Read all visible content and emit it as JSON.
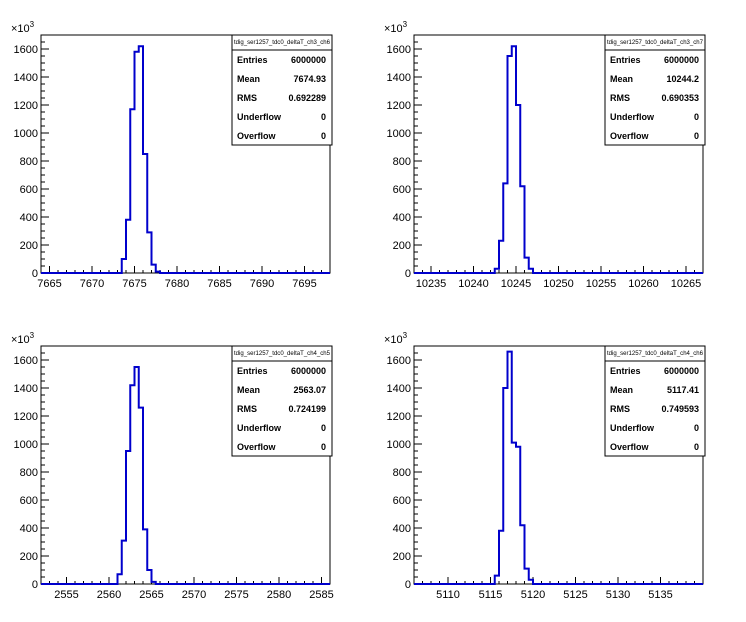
{
  "chart_data": [
    {
      "type": "histogram",
      "stats_title": "tdig_ser1257_tdc0_deltaT_ch3_ch6",
      "exponent_label": "×10³",
      "stats": [
        {
          "label": "Entries",
          "value": "6000000"
        },
        {
          "label": "Mean",
          "value": "7674.93"
        },
        {
          "label": "RMS",
          "value": "0.692289"
        },
        {
          "label": "Underflow",
          "value": "0"
        },
        {
          "label": "Overflow",
          "value": "0"
        }
      ],
      "xlim": [
        7664,
        7698
      ],
      "ylim": [
        0,
        1700
      ],
      "xticks": [
        7665,
        7670,
        7675,
        7680,
        7685,
        7690,
        7695
      ],
      "yticks": [
        0,
        200,
        400,
        600,
        800,
        1000,
        1200,
        1400,
        1600
      ],
      "bin_width": 0.5,
      "bins": [
        {
          "x": 7673.5,
          "y": 100
        },
        {
          "x": 7674.0,
          "y": 380
        },
        {
          "x": 7674.5,
          "y": 1170
        },
        {
          "x": 7675.0,
          "y": 1580
        },
        {
          "x": 7675.5,
          "y": 1620
        },
        {
          "x": 7676.0,
          "y": 850
        },
        {
          "x": 7676.5,
          "y": 290
        },
        {
          "x": 7677.0,
          "y": 60
        },
        {
          "x": 7677.5,
          "y": 10
        }
      ]
    },
    {
      "type": "histogram",
      "stats_title": "tdig_ser1257_tdc0_deltaT_ch3_ch7",
      "exponent_label": "×10³",
      "stats": [
        {
          "label": "Entries",
          "value": "6000000"
        },
        {
          "label": "Mean",
          "value": "10244.2"
        },
        {
          "label": "RMS",
          "value": "0.690353"
        },
        {
          "label": "Underflow",
          "value": "0"
        },
        {
          "label": "Overflow",
          "value": "0"
        }
      ],
      "xlim": [
        10233,
        10267
      ],
      "ylim": [
        0,
        1700
      ],
      "xticks": [
        10235,
        10240,
        10245,
        10250,
        10255,
        10260,
        10265
      ],
      "yticks": [
        0,
        200,
        400,
        600,
        800,
        1000,
        1200,
        1400,
        1600
      ],
      "bin_width": 0.5,
      "bins": [
        {
          "x": 10242.5,
          "y": 30
        },
        {
          "x": 10243.0,
          "y": 230
        },
        {
          "x": 10243.5,
          "y": 640
        },
        {
          "x": 10244.0,
          "y": 1550
        },
        {
          "x": 10244.5,
          "y": 1620
        },
        {
          "x": 10245.0,
          "y": 1200
        },
        {
          "x": 10245.5,
          "y": 620
        },
        {
          "x": 10246.0,
          "y": 110
        },
        {
          "x": 10246.5,
          "y": 30
        }
      ]
    },
    {
      "type": "histogram",
      "stats_title": "tdig_ser1257_tdc0_deltaT_ch4_ch5",
      "exponent_label": "×10³",
      "stats": [
        {
          "label": "Entries",
          "value": "6000000"
        },
        {
          "label": "Mean",
          "value": "2563.07"
        },
        {
          "label": "RMS",
          "value": "0.724199"
        },
        {
          "label": "Underflow",
          "value": "0"
        },
        {
          "label": "Overflow",
          "value": "0"
        }
      ],
      "xlim": [
        2552,
        2586
      ],
      "ylim": [
        0,
        1700
      ],
      "xticks": [
        2555,
        2560,
        2565,
        2570,
        2575,
        2580,
        2585
      ],
      "yticks": [
        0,
        200,
        400,
        600,
        800,
        1000,
        1200,
        1400,
        1600
      ],
      "bin_width": 0.5,
      "bins": [
        {
          "x": 2561.0,
          "y": 70
        },
        {
          "x": 2561.5,
          "y": 310
        },
        {
          "x": 2562.0,
          "y": 950
        },
        {
          "x": 2562.5,
          "y": 1420
        },
        {
          "x": 2563.0,
          "y": 1550
        },
        {
          "x": 2563.5,
          "y": 1260
        },
        {
          "x": 2564.0,
          "y": 390
        },
        {
          "x": 2564.5,
          "y": 100
        },
        {
          "x": 2565.0,
          "y": 15
        }
      ]
    },
    {
      "type": "histogram",
      "stats_title": "tdig_ser1257_tdc0_deltaT_ch4_ch6",
      "exponent_label": "×10³",
      "stats": [
        {
          "label": "Entries",
          "value": "6000000"
        },
        {
          "label": "Mean",
          "value": "5117.41"
        },
        {
          "label": "RMS",
          "value": "0.749593"
        },
        {
          "label": "Underflow",
          "value": "0"
        },
        {
          "label": "Overflow",
          "value": "0"
        }
      ],
      "xlim": [
        5106,
        5140
      ],
      "ylim": [
        0,
        1700
      ],
      "xticks": [
        5110,
        5115,
        5120,
        5125,
        5130,
        5135
      ],
      "yticks": [
        0,
        200,
        400,
        600,
        800,
        1000,
        1200,
        1400,
        1600
      ],
      "bin_width": 0.5,
      "bins": [
        {
          "x": 5115.5,
          "y": 60
        },
        {
          "x": 5116.0,
          "y": 380
        },
        {
          "x": 5116.5,
          "y": 1400
        },
        {
          "x": 5117.0,
          "y": 1660
        },
        {
          "x": 5117.5,
          "y": 1010
        },
        {
          "x": 5118.0,
          "y": 980
        },
        {
          "x": 5118.5,
          "y": 420
        },
        {
          "x": 5119.0,
          "y": 110
        },
        {
          "x": 5119.5,
          "y": 30
        }
      ]
    }
  ],
  "colors": {
    "line": "#0000cc",
    "axis": "#000000",
    "background": "#ffffff"
  }
}
